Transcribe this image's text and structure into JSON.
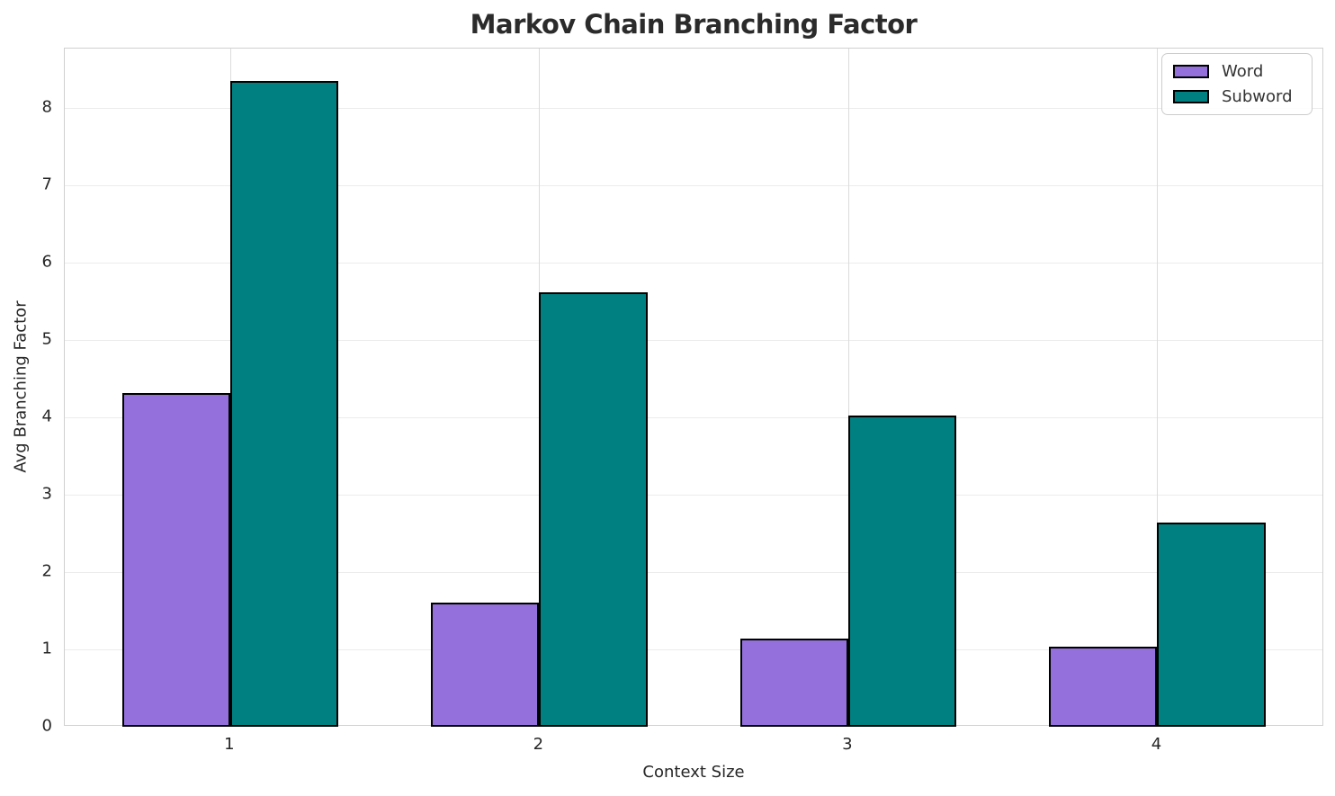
{
  "title": "Markov Chain Branching Factor",
  "chart_data": {
    "type": "bar",
    "title": "Markov Chain Branching Factor",
    "xlabel": "Context Size",
    "ylabel": "Avg Branching Factor",
    "categories": [
      "1",
      "2",
      "3",
      "4"
    ],
    "series": [
      {
        "name": "Word",
        "color": "#9370db",
        "values": [
          4.31,
          1.6,
          1.14,
          1.03
        ]
      },
      {
        "name": "Subword",
        "color": "#008080",
        "values": [
          8.35,
          5.62,
          4.02,
          2.64
        ]
      }
    ],
    "bar_edge_color": "#000000",
    "bar_width_units": 0.35,
    "x_positions": [
      1,
      2,
      3,
      4
    ],
    "xlim": [
      0.465,
      4.54
    ],
    "ylim": [
      0,
      8.77
    ],
    "yticks": [
      0,
      1,
      2,
      3,
      4,
      5,
      6,
      7,
      8
    ],
    "grid": true,
    "legend_position": "upper right"
  },
  "legend": {
    "items": [
      {
        "label": "Word",
        "color": "#9370db"
      },
      {
        "label": "Subword",
        "color": "#008080"
      }
    ]
  }
}
